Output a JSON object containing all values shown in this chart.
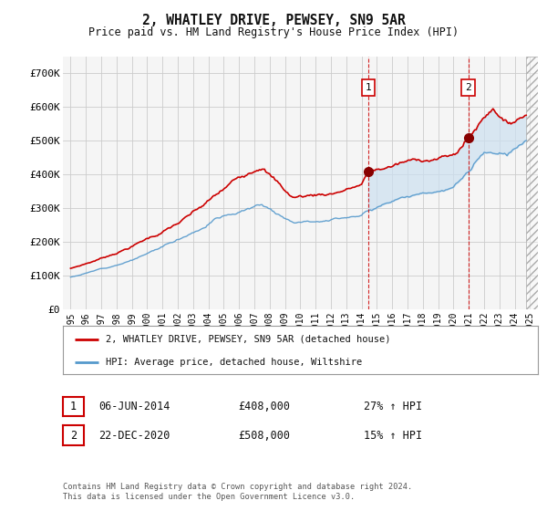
{
  "title": "2, WHATLEY DRIVE, PEWSEY, SN9 5AR",
  "subtitle": "Price paid vs. HM Land Registry's House Price Index (HPI)",
  "ylim": [
    0,
    750000
  ],
  "yticks": [
    0,
    100000,
    200000,
    300000,
    400000,
    500000,
    600000,
    700000
  ],
  "ytick_labels": [
    "£0",
    "£100K",
    "£200K",
    "£300K",
    "£400K",
    "£500K",
    "£600K",
    "£700K"
  ],
  "background_color": "#ffffff",
  "plot_bg_color": "#f5f5f5",
  "grid_color": "#cccccc",
  "red_line_color": "#cc0000",
  "blue_line_color": "#5599cc",
  "fill_color": "#cce0f0",
  "marker1_date_x": 2014.43,
  "marker1_price": 408000,
  "marker2_date_x": 2020.97,
  "marker2_price": 508000,
  "legend_entries": [
    "2, WHATLEY DRIVE, PEWSEY, SN9 5AR (detached house)",
    "HPI: Average price, detached house, Wiltshire"
  ],
  "table_rows": [
    [
      "1",
      "06-JUN-2014",
      "£408,000",
      "27% ↑ HPI"
    ],
    [
      "2",
      "22-DEC-2020",
      "£508,000",
      "15% ↑ HPI"
    ]
  ],
  "footnote": "Contains HM Land Registry data © Crown copyright and database right 2024.\nThis data is licensed under the Open Government Licence v3.0.",
  "xlim_start": 1994.5,
  "xlim_end": 2025.5,
  "hatch_start": 2024.75,
  "xtick_years": [
    1995,
    1996,
    1997,
    1998,
    1999,
    2000,
    2001,
    2002,
    2003,
    2004,
    2005,
    2006,
    2007,
    2008,
    2009,
    2010,
    2011,
    2012,
    2013,
    2014,
    2015,
    2016,
    2017,
    2018,
    2019,
    2020,
    2021,
    2022,
    2023,
    2024,
    2025
  ]
}
